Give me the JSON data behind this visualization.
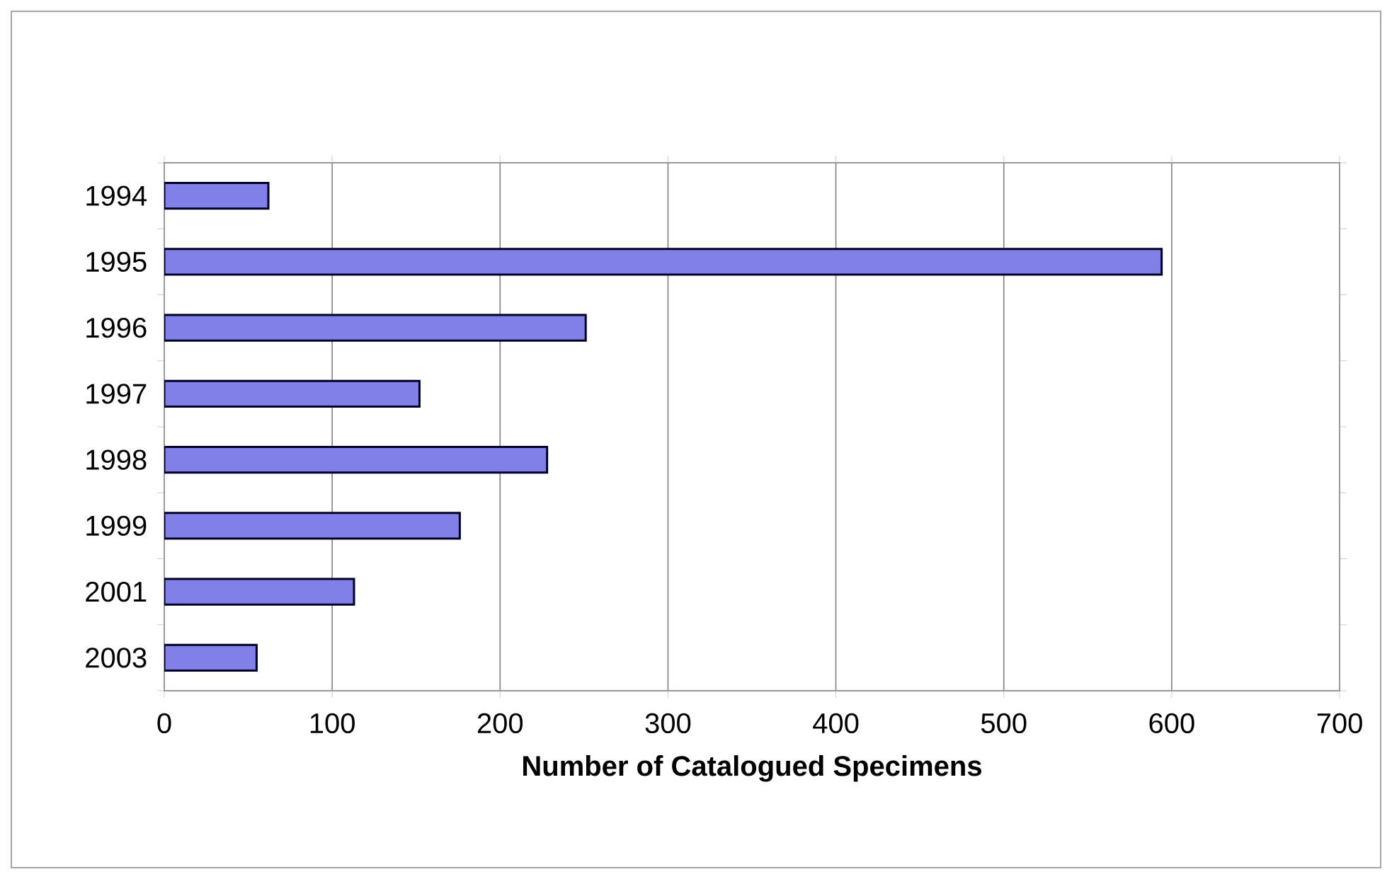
{
  "chart_data": {
    "type": "bar",
    "orientation": "horizontal",
    "categories": [
      "1994",
      "1995",
      "1996",
      "1997",
      "1998",
      "1999",
      "2001",
      "2003"
    ],
    "values": [
      62,
      594,
      251,
      152,
      228,
      176,
      113,
      55
    ],
    "color": "#8080e8",
    "xlim": [
      0,
      700
    ],
    "xticks": [
      0,
      100,
      200,
      300,
      400,
      500,
      600,
      700
    ],
    "xlabel": "Number of Catalogued Specimens",
    "grid": "x"
  }
}
